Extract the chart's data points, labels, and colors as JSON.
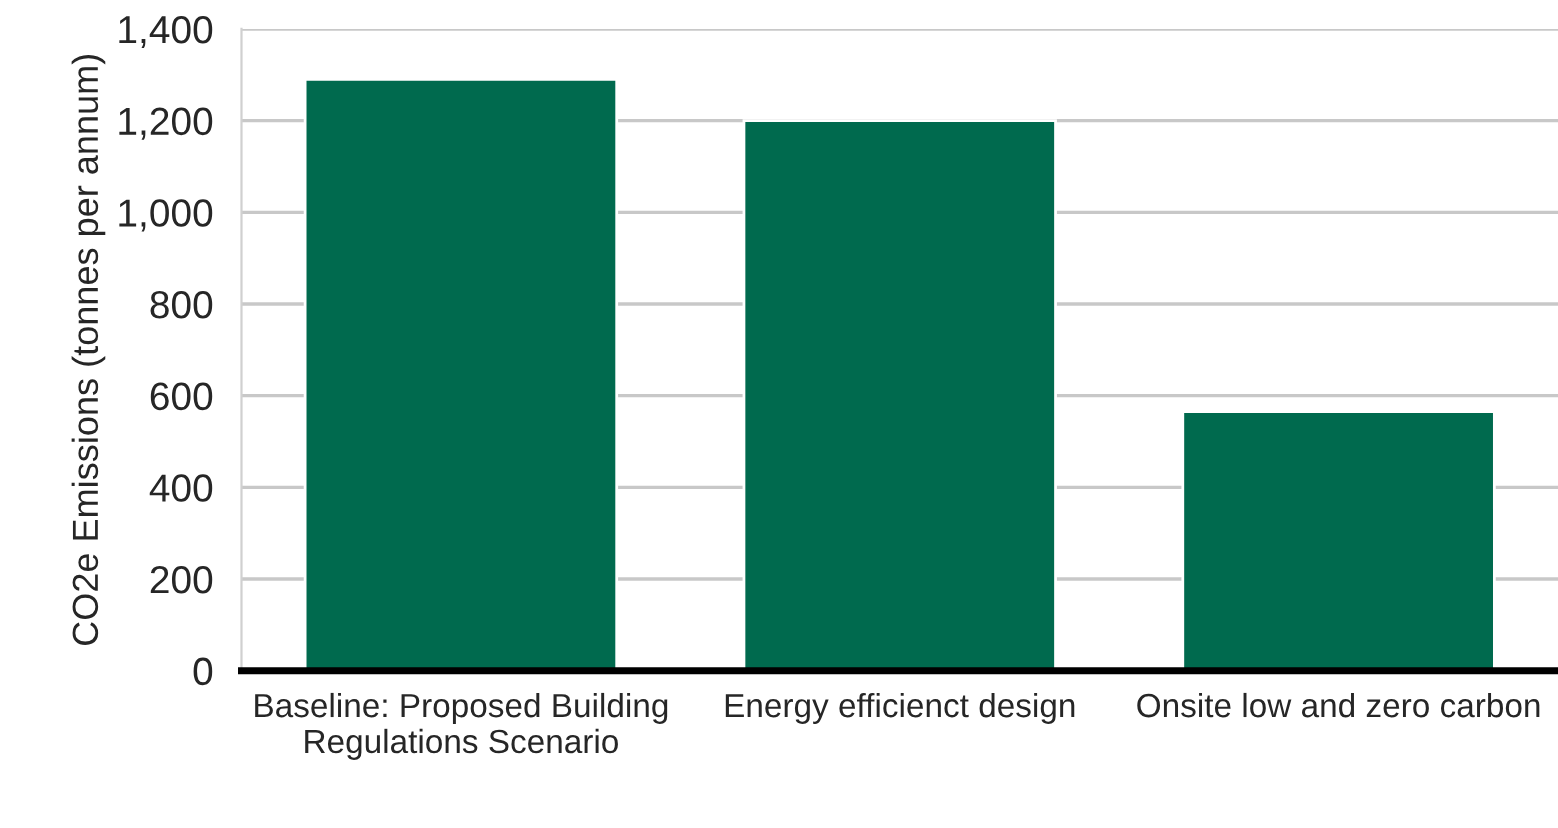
{
  "chart_data": {
    "type": "bar",
    "ylabel": "CO2e Emissions (tonnes per annum)",
    "categories": [
      "Baseline: Proposed Building\nRegulations Scenario",
      "Energy efficienct design",
      "Onsite low and zero carbon"
    ],
    "values": [
      1290,
      1200,
      565
    ],
    "color": "#006a4e",
    "ylim": [
      0,
      1400
    ],
    "yticks": [
      0,
      200,
      400,
      600,
      800,
      {
        "value": 1000,
        "label": "1,000"
      },
      {
        "value": 1200,
        "label": "1,200"
      },
      {
        "value": 1400,
        "label": "1,400"
      }
    ],
    "grid": "y",
    "legend": false
  }
}
